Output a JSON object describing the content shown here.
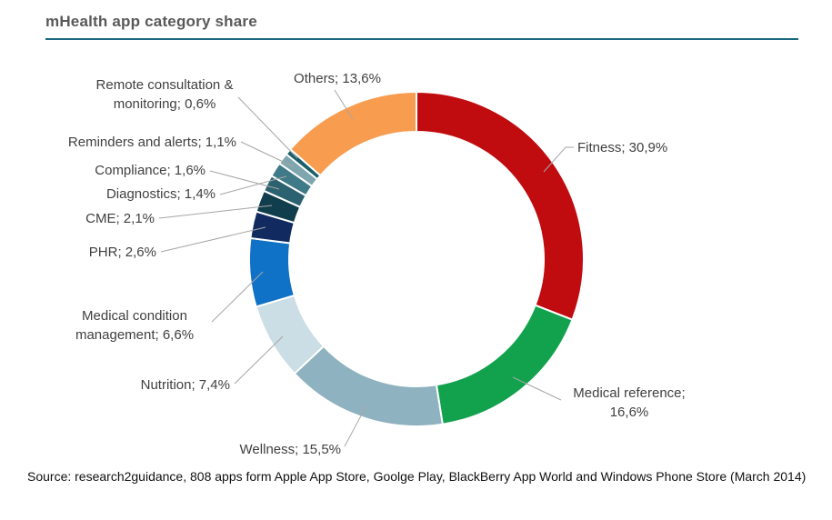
{
  "title": "mHealth app category share",
  "source": "Source: research2guidance,  808 apps form Apple App Store, Goolge Play, BlackBerry App World and Windows Phone Store (March 2014)",
  "colors": {
    "title_text": "#595959",
    "title_underline": "#16677F",
    "label_text": "#404040",
    "leader_line": "#A6A6A6",
    "slice_gap": "#FFFFFF"
  },
  "chart_data": {
    "type": "pie",
    "subtype": "donut",
    "title": "mHealth app category share",
    "unit": "%",
    "decimal_separator": ",",
    "start_angle_deg": 0,
    "direction": "clockwise",
    "legend_position": "callout-labels",
    "slices": [
      {
        "name": "Fitness",
        "value": 30.9,
        "label_lines": [
          "Fitness; 30,9%"
        ],
        "color": "#C00B0F"
      },
      {
        "name": "Medical reference",
        "value": 16.6,
        "label_lines": [
          "Medical reference;",
          "16,6%"
        ],
        "color": "#12A24D"
      },
      {
        "name": "Wellness",
        "value": 15.5,
        "label_lines": [
          "Wellness; 15,5%"
        ],
        "color": "#8FB2C0"
      },
      {
        "name": "Nutrition",
        "value": 7.4,
        "label_lines": [
          "Nutrition; 7,4%"
        ],
        "color": "#CBDDE5"
      },
      {
        "name": "Medical condition management",
        "value": 6.6,
        "label_lines": [
          "Medical condition",
          "management; 6,6%"
        ],
        "color": "#0F72C6"
      },
      {
        "name": "PHR",
        "value": 2.6,
        "label_lines": [
          "PHR; 2,6%"
        ],
        "color": "#112A60"
      },
      {
        "name": "CME",
        "value": 2.1,
        "label_lines": [
          "CME; 2,1%"
        ],
        "color": "#113E4C"
      },
      {
        "name": "Compliance",
        "value": 1.6,
        "label_lines": [
          "Compliance; 1,6%"
        ],
        "color": "#2C6170"
      },
      {
        "name": "Diagnostics",
        "value": 1.4,
        "label_lines": [
          "Diagnostics; 1,4%"
        ],
        "color": "#3F7A89"
      },
      {
        "name": "Reminders and alerts",
        "value": 1.1,
        "label_lines": [
          "Reminders and alerts; 1,1%"
        ],
        "color": "#7FA6AE"
      },
      {
        "name": "Remote consultation & monitoring",
        "value": 0.6,
        "label_lines": [
          "Remote consultation &",
          "monitoring; 0,6%"
        ],
        "color": "#1A5F6A"
      },
      {
        "name": "Others",
        "value": 13.6,
        "label_lines": [
          "Others; 13,6%"
        ],
        "color": "#F89C4F"
      }
    ]
  }
}
